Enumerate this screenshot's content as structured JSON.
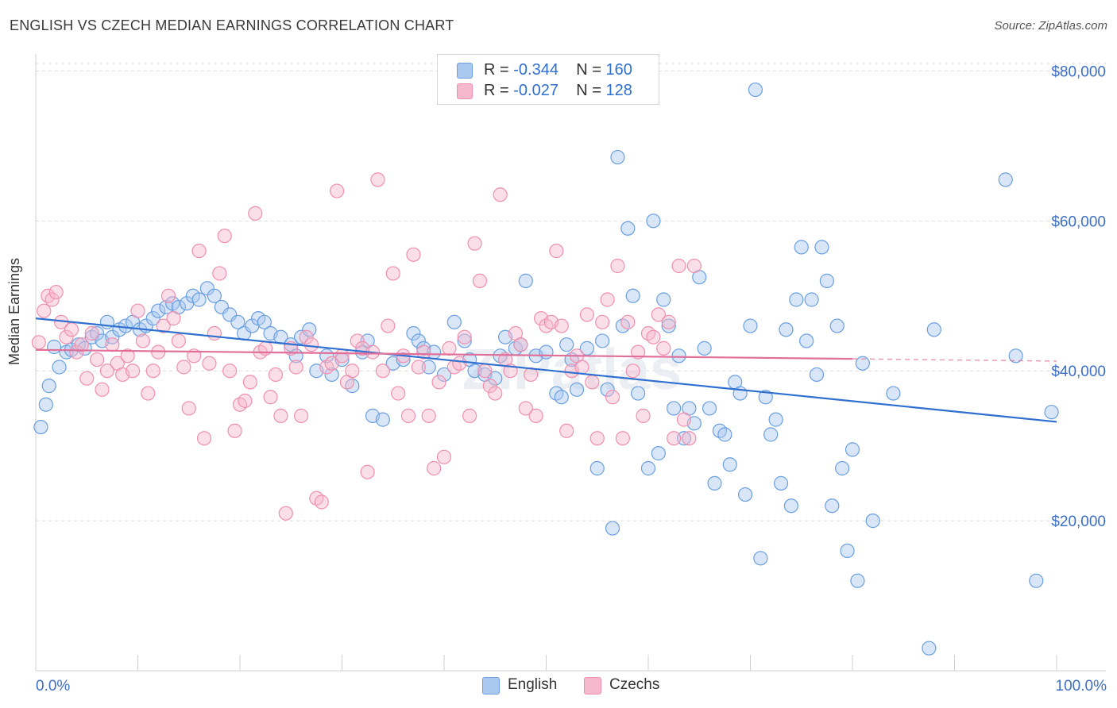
{
  "title": "ENGLISH VS CZECH MEDIAN EARNINGS CORRELATION CHART",
  "source": "Source: ZipAtlas.com",
  "watermark": "ZIPatlas",
  "legend": {
    "rows": [
      {
        "r_label": "R = ",
        "r_value": "-0.344",
        "n_label": "N = ",
        "n_value": "160",
        "color": "#a8c8f0"
      },
      {
        "r_label": "R = ",
        "r_value": "-0.027",
        "n_label": "N = ",
        "n_value": "128",
        "color": "#f6b8cc"
      }
    ]
  },
  "bottom_legend": [
    {
      "label": "English",
      "color": "#a8c8f0"
    },
    {
      "label": "Czechs",
      "color": "#f6b8cc"
    }
  ],
  "chart_data": {
    "type": "scatter",
    "ylabel": "Median Earnings",
    "x_tick_labels": [
      "0.0%",
      "100.0%"
    ],
    "y_tick_labels": [
      "$20,000",
      "$40,000",
      "$60,000",
      "$80,000"
    ],
    "y_ticks": [
      20000,
      40000,
      60000,
      80000
    ],
    "xlim": [
      0,
      100
    ],
    "ylim": [
      0,
      81000
    ],
    "grid": true,
    "legend_position": "top-center",
    "series": [
      {
        "name": "English",
        "color": "#6a9fe0",
        "fill": "#a8c8f0",
        "trend": {
          "x": [
            0,
            100
          ],
          "y": [
            47000,
            33200
          ],
          "color": "#2f6fd0"
        },
        "points": [
          [
            0.5,
            32500
          ],
          [
            1.0,
            35500
          ],
          [
            1.3,
            38000
          ],
          [
            1.8,
            43200
          ],
          [
            2.3,
            40500
          ],
          [
            3.0,
            42500
          ],
          [
            3.5,
            42800
          ],
          [
            4.2,
            43500
          ],
          [
            4.8,
            43000
          ],
          [
            5.5,
            44500
          ],
          [
            6.0,
            45000
          ],
          [
            6.5,
            44000
          ],
          [
            7.0,
            46500
          ],
          [
            7.5,
            44500
          ],
          [
            8.2,
            45500
          ],
          [
            8.8,
            46000
          ],
          [
            9.5,
            46500
          ],
          [
            10.2,
            45500
          ],
          [
            10.8,
            46000
          ],
          [
            11.5,
            47000
          ],
          [
            12.0,
            48000
          ],
          [
            12.8,
            48500
          ],
          [
            13.4,
            49000
          ],
          [
            14.0,
            48500
          ],
          [
            14.8,
            49000
          ],
          [
            15.4,
            50000
          ],
          [
            16.0,
            49500
          ],
          [
            16.8,
            51000
          ],
          [
            17.5,
            50000
          ],
          [
            18.2,
            48500
          ],
          [
            19.0,
            47500
          ],
          [
            19.8,
            46500
          ],
          [
            20.4,
            45000
          ],
          [
            21.2,
            46000
          ],
          [
            21.8,
            47000
          ],
          [
            22.4,
            46500
          ],
          [
            23.0,
            45000
          ],
          [
            24.0,
            44500
          ],
          [
            25.0,
            43500
          ],
          [
            25.5,
            42000
          ],
          [
            26.0,
            44500
          ],
          [
            26.8,
            45500
          ],
          [
            27.5,
            40000
          ],
          [
            28.5,
            42000
          ],
          [
            29.0,
            39500
          ],
          [
            30.0,
            41500
          ],
          [
            31.0,
            38000
          ],
          [
            32.0,
            42500
          ],
          [
            32.5,
            44000
          ],
          [
            33.0,
            34000
          ],
          [
            34.0,
            33500
          ],
          [
            35.0,
            41000
          ],
          [
            36.0,
            41500
          ],
          [
            37.0,
            45000
          ],
          [
            37.5,
            44000
          ],
          [
            38.0,
            43000
          ],
          [
            38.5,
            40500
          ],
          [
            39.0,
            42500
          ],
          [
            40.0,
            39500
          ],
          [
            41.0,
            46500
          ],
          [
            42.0,
            44000
          ],
          [
            42.5,
            41500
          ],
          [
            43.0,
            40000
          ],
          [
            44.0,
            39500
          ],
          [
            45.0,
            39000
          ],
          [
            45.5,
            42000
          ],
          [
            46.0,
            44500
          ],
          [
            47.0,
            43000
          ],
          [
            47.5,
            43500
          ],
          [
            48.0,
            52000
          ],
          [
            49.0,
            42000
          ],
          [
            50.0,
            42500
          ],
          [
            51.0,
            37000
          ],
          [
            51.5,
            36500
          ],
          [
            52.0,
            43500
          ],
          [
            52.5,
            41500
          ],
          [
            53.0,
            37500
          ],
          [
            54.0,
            43000
          ],
          [
            55.0,
            27000
          ],
          [
            55.5,
            44000
          ],
          [
            56.0,
            37500
          ],
          [
            56.5,
            19000
          ],
          [
            57.0,
            68500
          ],
          [
            57.5,
            46000
          ],
          [
            58.0,
            59000
          ],
          [
            58.5,
            50000
          ],
          [
            59.0,
            37000
          ],
          [
            60.0,
            27000
          ],
          [
            60.5,
            60000
          ],
          [
            61.0,
            29000
          ],
          [
            61.5,
            49500
          ],
          [
            62.0,
            46000
          ],
          [
            62.5,
            35000
          ],
          [
            63.0,
            42000
          ],
          [
            63.5,
            31000
          ],
          [
            64.0,
            35000
          ],
          [
            64.5,
            33000
          ],
          [
            65.0,
            52500
          ],
          [
            65.5,
            43000
          ],
          [
            66.0,
            35000
          ],
          [
            66.5,
            25000
          ],
          [
            67.0,
            32000
          ],
          [
            67.5,
            31500
          ],
          [
            68.0,
            27500
          ],
          [
            68.5,
            38500
          ],
          [
            69.0,
            37000
          ],
          [
            69.5,
            23500
          ],
          [
            70.0,
            46000
          ],
          [
            70.5,
            77500
          ],
          [
            71.0,
            15000
          ],
          [
            71.5,
            36500
          ],
          [
            72.0,
            31500
          ],
          [
            72.5,
            33500
          ],
          [
            73.0,
            25000
          ],
          [
            73.5,
            45500
          ],
          [
            74.0,
            22000
          ],
          [
            74.5,
            49500
          ],
          [
            75.0,
            56500
          ],
          [
            75.5,
            44000
          ],
          [
            76.0,
            49500
          ],
          [
            76.5,
            39500
          ],
          [
            77.0,
            56500
          ],
          [
            77.5,
            52000
          ],
          [
            78.0,
            22000
          ],
          [
            78.5,
            46000
          ],
          [
            79.0,
            27000
          ],
          [
            79.5,
            16000
          ],
          [
            80.0,
            29500
          ],
          [
            80.5,
            12000
          ],
          [
            81.0,
            41000
          ],
          [
            82.0,
            20000
          ],
          [
            84.0,
            37000
          ],
          [
            87.5,
            3000
          ],
          [
            88.0,
            45500
          ],
          [
            95.0,
            65500
          ],
          [
            96.0,
            42000
          ],
          [
            98.0,
            12000
          ],
          [
            99.5,
            34500
          ]
        ]
      },
      {
        "name": "Czechs",
        "color": "#ef8fb0",
        "fill": "#f6b8cc",
        "trend": {
          "x": [
            0,
            80
          ],
          "y": [
            42800,
            41600
          ],
          "color": "#e0709a"
        },
        "trend_dashed": {
          "x": [
            80,
            100
          ],
          "y": [
            41600,
            41300
          ]
        },
        "points": [
          [
            0.3,
            43800
          ],
          [
            0.8,
            48000
          ],
          [
            1.2,
            50000
          ],
          [
            1.6,
            49500
          ],
          [
            2.0,
            50500
          ],
          [
            2.5,
            46500
          ],
          [
            3.0,
            44500
          ],
          [
            3.5,
            45500
          ],
          [
            4.0,
            42500
          ],
          [
            4.5,
            43500
          ],
          [
            5.0,
            39000
          ],
          [
            5.5,
            45000
          ],
          [
            6.0,
            41500
          ],
          [
            6.5,
            37500
          ],
          [
            7.0,
            40000
          ],
          [
            7.5,
            43500
          ],
          [
            8.0,
            41000
          ],
          [
            8.5,
            39500
          ],
          [
            9.0,
            42000
          ],
          [
            9.5,
            40000
          ],
          [
            10.0,
            48000
          ],
          [
            10.5,
            44000
          ],
          [
            11.0,
            37000
          ],
          [
            11.5,
            40000
          ],
          [
            12.0,
            42500
          ],
          [
            12.5,
            46000
          ],
          [
            13.0,
            50000
          ],
          [
            13.5,
            47000
          ],
          [
            14.0,
            44000
          ],
          [
            14.5,
            40500
          ],
          [
            15.0,
            35000
          ],
          [
            15.5,
            42000
          ],
          [
            16.0,
            56000
          ],
          [
            16.5,
            31000
          ],
          [
            17.0,
            41000
          ],
          [
            17.5,
            45000
          ],
          [
            18.0,
            53000
          ],
          [
            18.5,
            58000
          ],
          [
            19.0,
            40000
          ],
          [
            19.5,
            32000
          ],
          [
            20.0,
            35500
          ],
          [
            20.5,
            36000
          ],
          [
            21.0,
            38500
          ],
          [
            21.5,
            61000
          ],
          [
            22.0,
            42500
          ],
          [
            22.5,
            43000
          ],
          [
            23.0,
            36500
          ],
          [
            23.5,
            39500
          ],
          [
            24.0,
            34000
          ],
          [
            24.5,
            21000
          ],
          [
            25.0,
            43000
          ],
          [
            25.5,
            40500
          ],
          [
            26.0,
            34000
          ],
          [
            26.5,
            44500
          ],
          [
            27.0,
            43500
          ],
          [
            27.5,
            23000
          ],
          [
            28.0,
            22500
          ],
          [
            28.5,
            40500
          ],
          [
            29.0,
            41000
          ],
          [
            29.5,
            64000
          ],
          [
            30.0,
            42000
          ],
          [
            30.5,
            38500
          ],
          [
            31.0,
            40000
          ],
          [
            31.5,
            44000
          ],
          [
            32.0,
            43000
          ],
          [
            32.5,
            26500
          ],
          [
            33.0,
            42500
          ],
          [
            33.5,
            65500
          ],
          [
            34.0,
            40000
          ],
          [
            34.5,
            46000
          ],
          [
            35.0,
            53000
          ],
          [
            35.5,
            37000
          ],
          [
            36.0,
            42000
          ],
          [
            36.5,
            34000
          ],
          [
            37.0,
            55500
          ],
          [
            37.5,
            40500
          ],
          [
            38.0,
            42500
          ],
          [
            38.5,
            34000
          ],
          [
            39.0,
            27000
          ],
          [
            39.5,
            38500
          ],
          [
            40.0,
            28500
          ],
          [
            40.5,
            43000
          ],
          [
            41.0,
            40500
          ],
          [
            41.5,
            41000
          ],
          [
            42.0,
            44500
          ],
          [
            42.5,
            34000
          ],
          [
            43.0,
            57000
          ],
          [
            43.5,
            52000
          ],
          [
            44.0,
            40000
          ],
          [
            44.5,
            38000
          ],
          [
            45.0,
            37000
          ],
          [
            45.5,
            63500
          ],
          [
            46.0,
            41500
          ],
          [
            46.5,
            40000
          ],
          [
            47.0,
            45000
          ],
          [
            47.5,
            43500
          ],
          [
            48.0,
            35000
          ],
          [
            48.5,
            39500
          ],
          [
            49.0,
            34000
          ],
          [
            49.5,
            47000
          ],
          [
            50.0,
            46000
          ],
          [
            50.5,
            46500
          ],
          [
            51.0,
            56000
          ],
          [
            51.5,
            46000
          ],
          [
            52.0,
            32000
          ],
          [
            52.5,
            40000
          ],
          [
            53.0,
            42000
          ],
          [
            53.5,
            40500
          ],
          [
            54.0,
            47500
          ],
          [
            54.5,
            38500
          ],
          [
            55.0,
            31000
          ],
          [
            55.5,
            46500
          ],
          [
            56.0,
            49500
          ],
          [
            56.5,
            36500
          ],
          [
            57.0,
            54000
          ],
          [
            57.5,
            31000
          ],
          [
            58.0,
            46500
          ],
          [
            58.5,
            40000
          ],
          [
            59.0,
            42500
          ],
          [
            59.5,
            34000
          ],
          [
            60.0,
            45000
          ],
          [
            60.5,
            44500
          ],
          [
            61.0,
            47500
          ],
          [
            61.5,
            43000
          ],
          [
            62.0,
            46500
          ],
          [
            62.5,
            31000
          ],
          [
            63.0,
            54000
          ],
          [
            63.5,
            33500
          ],
          [
            64.0,
            31000
          ],
          [
            64.5,
            54000
          ]
        ]
      }
    ]
  }
}
